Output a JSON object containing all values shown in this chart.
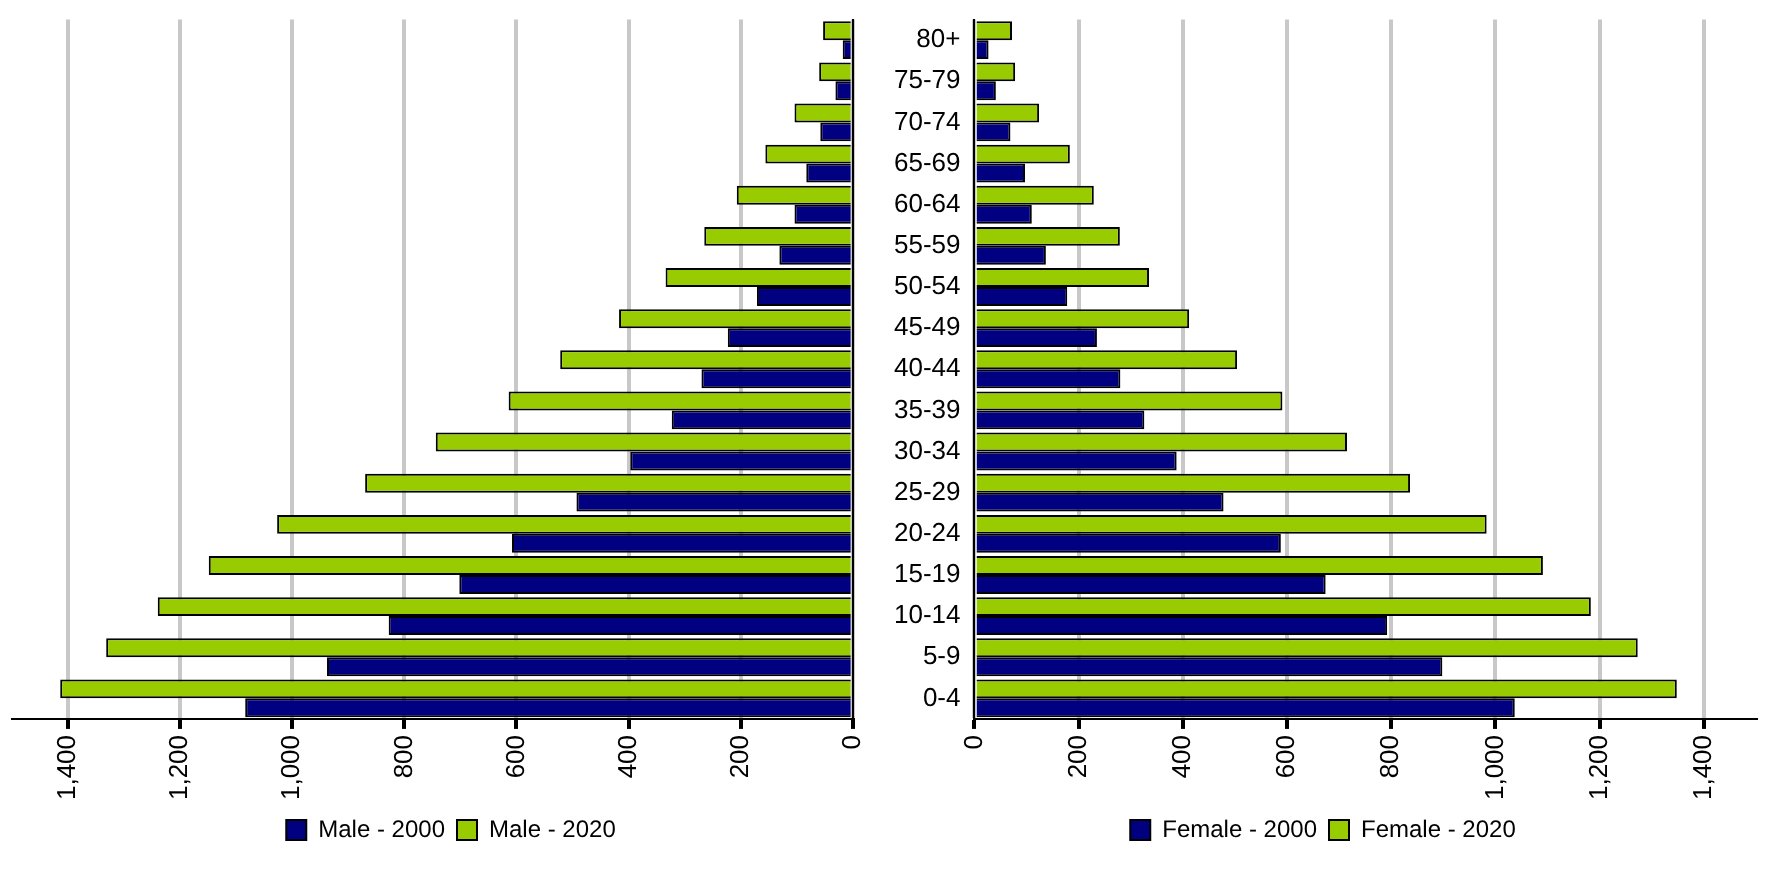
{
  "chart_data": [
    {
      "type": "bar",
      "orientation": "horizontal",
      "categories": [
        null,
        null,
        null,
        null,
        null,
        null,
        null,
        null,
        null,
        null,
        null,
        null,
        null,
        null,
        null,
        null,
        null
      ],
      "series": [
        {
          "name": "Male - 2000",
          "color": "#000080",
          "values": [
            18,
            31,
            58,
            83,
            104,
            131,
            171,
            223,
            270,
            323,
            397,
            493,
            608,
            702,
            828,
            938,
            1084
          ]
        },
        {
          "name": "Male - 2020",
          "color": "#99cc00",
          "values": [
            53,
            60,
            104,
            156,
            207,
            265,
            334,
            417,
            522,
            614,
            744,
            870,
            1027,
            1149,
            1240,
            1332,
            1414
          ]
        }
      ],
      "xlim": [
        1500,
        0
      ],
      "xticks": [
        {
          "value": 1400,
          "label": "1,400"
        },
        {
          "value": 1200,
          "label": "1,200"
        },
        {
          "value": 1000,
          "label": "1,000"
        },
        800,
        600,
        400,
        200,
        0
      ],
      "grid": "x",
      "legend": "bottom"
    },
    {
      "type": "bar",
      "orientation": "horizontal",
      "categories": [
        "80+",
        "75-79",
        "70-74",
        "65-69",
        "60-64",
        "55-59",
        "50-54",
        "45-49",
        "40-44",
        "35-39",
        "30-34",
        "25-29",
        "20-24",
        "15-19",
        "10-14",
        "5-9",
        "0-4"
      ],
      "series": [
        {
          "name": "Female - 2000",
          "color": "#000080",
          "values": [
            27,
            41,
            69,
            97,
            110,
            137,
            178,
            235,
            280,
            326,
            388,
            478,
            588,
            674,
            792,
            898,
            1037
          ]
        },
        {
          "name": "Female - 2020",
          "color": "#99cc00",
          "values": [
            72,
            78,
            124,
            183,
            229,
            279,
            335,
            412,
            504,
            591,
            715,
            836,
            983,
            1091,
            1183,
            1273,
            1348
          ]
        }
      ],
      "xlim": [
        0,
        1500
      ],
      "xticks": [
        0,
        200,
        400,
        600,
        800,
        {
          "value": 1000,
          "label": "1,000"
        },
        {
          "value": 1200,
          "label": "1,200"
        },
        {
          "value": 1400,
          "label": "1,400"
        }
      ],
      "grid": "x",
      "legend": "bottom"
    }
  ]
}
